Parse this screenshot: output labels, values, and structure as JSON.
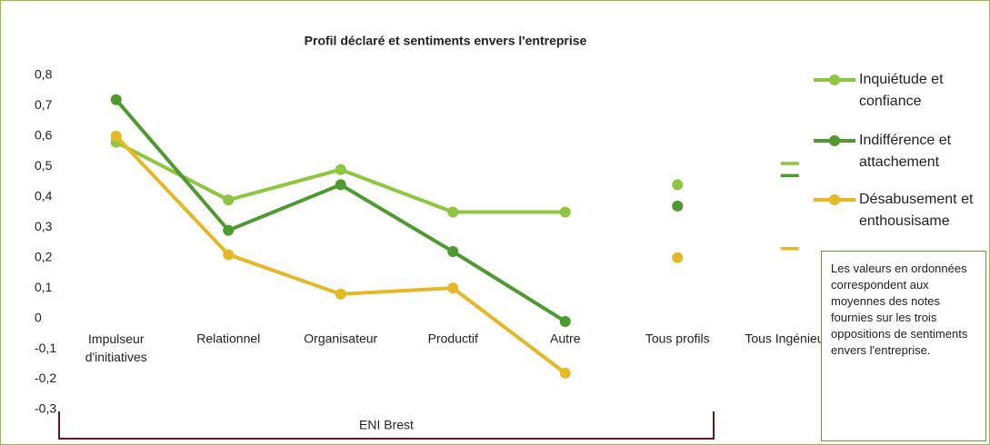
{
  "chart_data": {
    "type": "line",
    "title": "Profil déclaré et sentiments envers l'entreprise",
    "categories": [
      "Impulseur d'initiatives",
      "Relationnel",
      "Organisateur",
      "Productif",
      "Autre",
      "Tous profils",
      "Tous Ingénieurs"
    ],
    "group_label": "ENI Brest",
    "series": [
      {
        "name": "Inquiétude et confiance",
        "color": "#8dc63f",
        "values": [
          0.58,
          0.39,
          0.49,
          0.35,
          0.35,
          0.44,
          0.51
        ]
      },
      {
        "name": "Indifférence et attachement",
        "color": "#4e9a2f",
        "values": [
          0.72,
          0.29,
          0.44,
          0.22,
          -0.01,
          0.37,
          0.47
        ]
      },
      {
        "name": "Désabusement et enthousisame",
        "color": "#e6b826",
        "values": [
          0.6,
          0.21,
          0.08,
          0.1,
          -0.18,
          0.2,
          0.23
        ]
      }
    ],
    "ylim": [
      -0.3,
      0.8
    ],
    "yticks": [
      {
        "value": 0.8,
        "label": "0,8"
      },
      {
        "value": 0.7,
        "label": "0,7"
      },
      {
        "value": 0.6,
        "label": "0,6"
      },
      {
        "value": 0.5,
        "label": "0,5"
      },
      {
        "value": 0.4,
        "label": "0,4"
      },
      {
        "value": 0.3,
        "label": "0,3"
      },
      {
        "value": 0.2,
        "label": "0,2"
      },
      {
        "value": 0.1,
        "label": "0,1"
      },
      0,
      {
        "value": -0.1,
        "label": "-0,1"
      },
      {
        "value": -0.2,
        "label": "-0,2"
      },
      {
        "value": -0.3,
        "label": "-0,3"
      }
    ],
    "legend": "right",
    "note": "Les valeurs en ordonnées correspondent aux moyennes des notes fournies sur les trois oppositions de sentiments envers l'entreprise."
  }
}
